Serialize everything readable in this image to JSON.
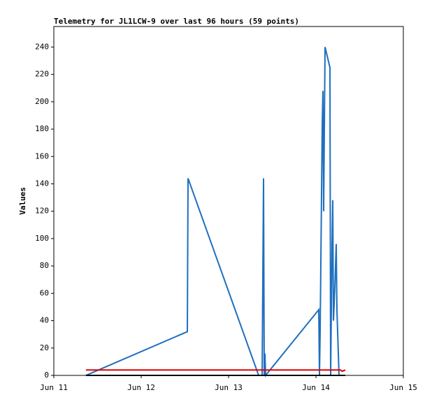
{
  "chart_data": {
    "type": "line",
    "title": "Telemetry for JL1LCW-9 over last 96 hours (59 points)",
    "y_label": "Values",
    "xlim": [
      0,
      4
    ],
    "xticks": [
      {
        "value": 0,
        "label": "Jun 11"
      },
      {
        "value": 1,
        "label": "Jun 12"
      },
      {
        "value": 2,
        "label": "Jun 13"
      },
      {
        "value": 3,
        "label": "Jun 14"
      },
      {
        "value": 4,
        "label": "Jun 15"
      }
    ],
    "ylim": [
      0,
      255
    ],
    "yticks": [
      0,
      20,
      40,
      60,
      80,
      100,
      120,
      140,
      160,
      180,
      200,
      220,
      240
    ],
    "series": [
      {
        "color": "#1f6fbf",
        "x": [
          0.368,
          1.528,
          1.536,
          2.344,
          2.384,
          2.392,
          2.4,
          2.408,
          2.416,
          2.424,
          3.032,
          3.04,
          3.048,
          3.072,
          3.08,
          3.088,
          3.104,
          3.16,
          3.168,
          3.184,
          3.192,
          3.2,
          3.216,
          3.232,
          3.24,
          3.264,
          3.288
        ],
        "values": [
          0,
          32,
          144,
          0,
          0,
          72,
          144,
          0,
          16,
          0,
          48,
          0,
          32,
          184,
          208,
          120,
          240,
          225,
          0,
          96,
          128,
          40,
          64,
          96,
          48,
          0,
          0
        ]
      },
      {
        "color": "#e00000",
        "x": [
          0.368,
          3.28,
          3.3,
          3.336
        ],
        "values": [
          4,
          4,
          3,
          4
        ]
      },
      {
        "color": "#000000",
        "x": [
          0.368,
          3.336
        ],
        "values": [
          0,
          0
        ]
      }
    ]
  }
}
